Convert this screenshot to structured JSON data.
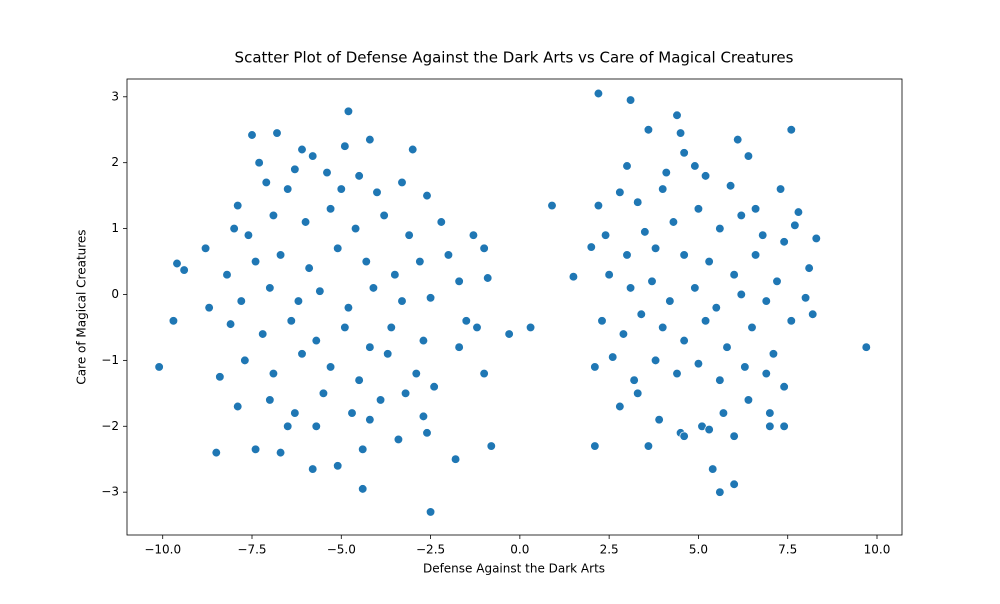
{
  "chart_data": {
    "type": "scatter",
    "title": "Scatter Plot of Defense Against the Dark Arts vs Care of Magical Creatures",
    "x_label": "Defense Against the Dark Arts",
    "y_label": "Care of Magical Creatures",
    "color": "#1f77b4",
    "xlim": [
      -11.0,
      10.7
    ],
    "ylim": [
      -3.65,
      3.27
    ],
    "xticks": [
      {
        "value": -10,
        "label": "−10.0"
      },
      {
        "value": -7.5,
        "label": "−7.5"
      },
      {
        "value": -5,
        "label": "−5.0"
      },
      {
        "value": -2.5,
        "label": "−2.5"
      },
      {
        "value": 0,
        "label": "0.0"
      },
      2.5,
      {
        "value": 5,
        "label": "5.0"
      },
      7.5,
      {
        "value": 10,
        "label": "10.0"
      }
    ],
    "yticks": [
      {
        "value": -3,
        "label": "−3"
      },
      {
        "value": -2,
        "label": "−2"
      },
      {
        "value": -1,
        "label": "−1"
      },
      0,
      1,
      2,
      3
    ],
    "x": [
      -7.5,
      -6.8,
      -6.1,
      -5.8,
      -4.2,
      -3.0,
      -4.9,
      -7.3,
      -6.3,
      -5.4,
      -4.5,
      -3.3,
      -2.6,
      -7.9,
      -7.1,
      -6.5,
      -5.0,
      -4.0,
      -2.2,
      -8.0,
      -7.6,
      -6.9,
      -6.0,
      -5.3,
      -4.6,
      -3.8,
      -3.1,
      -2.0,
      -1.3,
      -1.0,
      -8.8,
      -8.2,
      -7.4,
      -6.7,
      -5.9,
      -5.1,
      -4.3,
      -3.5,
      -2.8,
      -1.7,
      -0.9,
      -8.7,
      -7.8,
      -7.0,
      -6.2,
      -5.6,
      -4.8,
      -4.1,
      -3.3,
      -2.5,
      -1.5,
      -8.1,
      -7.2,
      -6.4,
      -5.7,
      -4.9,
      -4.2,
      -3.6,
      -2.7,
      -1.2,
      -8.4,
      -7.7,
      -6.9,
      -6.1,
      -5.3,
      -4.5,
      -3.7,
      -2.9,
      -1.7,
      -7.9,
      -7.0,
      -6.3,
      -5.5,
      -4.7,
      -3.9,
      -3.2,
      -2.4,
      -7.4,
      -6.7,
      -5.8,
      -5.1,
      -4.4,
      -3.4,
      -2.6,
      -6.5,
      -5.7,
      -4.2,
      -2.7,
      2.2,
      2.0,
      2.4,
      3.0,
      3.5,
      2.8,
      3.3,
      4.0,
      4.6,
      4.9,
      5.2,
      5.9,
      6.1,
      6.4,
      3.6,
      4.5,
      7.3,
      7.8,
      8.1,
      8.0,
      8.2,
      7.2,
      6.8,
      6.2,
      5.6,
      5.0,
      4.3,
      3.8,
      4.6,
      5.3,
      6.0,
      6.6,
      7.4,
      2.5,
      3.1,
      3.7,
      4.2,
      4.9,
      5.5,
      6.2,
      6.9,
      7.6,
      2.3,
      2.9,
      3.4,
      4.0,
      4.6,
      5.2,
      5.8,
      6.5,
      7.1,
      2.1,
      2.6,
      3.2,
      3.8,
      4.4,
      5.0,
      5.6,
      6.3,
      6.9,
      7.4,
      2.8,
      3.3,
      3.9,
      4.5,
      5.1,
      5.7,
      6.4,
      7.0,
      7.4,
      3.6,
      4.6,
      5.3,
      6.0,
      7.0,
      4.1,
      3.0,
      6.6,
      7.7,
      -10.1,
      -9.7,
      -9.6,
      -9.4,
      -8.5,
      -2.5,
      -4.4,
      -4.8,
      0.3,
      -0.3,
      -0.8,
      0.9,
      1.5,
      2.2,
      3.1,
      9.7,
      8.3,
      5.6,
      6.0,
      5.4,
      2.1,
      4.4,
      7.6,
      -1.8,
      -1.0
    ],
    "values": [
      2.42,
      2.45,
      2.2,
      2.1,
      2.35,
      2.2,
      2.25,
      2.0,
      1.9,
      1.85,
      1.8,
      1.7,
      1.5,
      1.35,
      1.7,
      1.6,
      1.6,
      1.55,
      1.1,
      1.0,
      0.9,
      1.2,
      1.1,
      1.3,
      1.0,
      1.2,
      0.9,
      0.6,
      0.9,
      0.7,
      0.7,
      0.3,
      0.5,
      0.6,
      0.4,
      0.7,
      0.5,
      0.3,
      0.5,
      0.2,
      0.25,
      -0.2,
      -0.1,
      0.1,
      -0.1,
      0.05,
      -0.2,
      0.1,
      -0.1,
      -0.05,
      -0.4,
      -0.45,
      -0.6,
      -0.4,
      -0.7,
      -0.5,
      -0.8,
      -0.5,
      -0.7,
      -0.5,
      -1.25,
      -1.0,
      -1.2,
      -0.9,
      -1.1,
      -1.3,
      -0.9,
      -1.2,
      -0.8,
      -1.7,
      -1.6,
      -1.8,
      -1.5,
      -1.8,
      -1.6,
      -1.5,
      -1.4,
      -2.35,
      -2.4,
      -2.65,
      -2.6,
      -2.35,
      -2.2,
      -2.1,
      -2.0,
      -2.0,
      -1.9,
      -1.85,
      1.35,
      0.72,
      0.9,
      0.6,
      0.95,
      1.55,
      1.4,
      1.6,
      2.15,
      1.95,
      1.8,
      1.65,
      2.35,
      2.1,
      2.5,
      2.45,
      1.6,
      1.25,
      0.4,
      -0.05,
      -0.3,
      0.2,
      0.9,
      1.2,
      1.0,
      1.3,
      1.1,
      0.7,
      0.6,
      0.5,
      0.3,
      0.6,
      0.8,
      0.3,
      0.1,
      0.2,
      -0.1,
      0.1,
      -0.2,
      0.0,
      -0.1,
      -0.4,
      -0.4,
      -0.6,
      -0.3,
      -0.5,
      -0.7,
      -0.4,
      -0.8,
      -0.5,
      -0.9,
      -1.1,
      -0.95,
      -1.3,
      -1.0,
      -1.2,
      -1.05,
      -1.3,
      -1.1,
      -1.2,
      -1.4,
      -1.7,
      -1.5,
      -1.9,
      -2.1,
      -2.0,
      -1.8,
      -1.6,
      -1.8,
      -2.0,
      -2.3,
      -2.15,
      -2.05,
      -2.15,
      -2.0,
      1.85,
      1.95,
      1.3,
      1.05,
      -1.1,
      -0.4,
      0.47,
      0.37,
      -2.4,
      -3.3,
      -2.95,
      2.78,
      -0.5,
      -0.6,
      -2.3,
      1.35,
      0.27,
      3.05,
      2.95,
      -0.8,
      0.85,
      -3.0,
      -2.88,
      -2.65,
      -2.3,
      2.72,
      2.5,
      -2.5,
      -1.2
    ]
  }
}
